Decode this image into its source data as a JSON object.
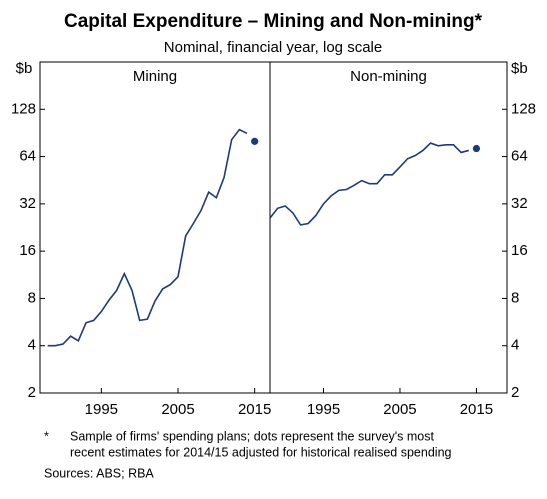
{
  "title": "Capital Expenditure – Mining and Non-mining*",
  "subtitle": "Nominal, financial year, log scale",
  "footnote": {
    "marker": "*",
    "lines": [
      "Sample of firms' spending plans;  dots represent the survey's most",
      "recent estimates for 2014/15 adjusted for historical realised spending"
    ]
  },
  "sources": "Sources:  ABS; RBA",
  "chart_data": [
    {
      "type": "line",
      "title": "Mining",
      "y_label": "$b",
      "log_scale": true,
      "color": "#1f3a7a",
      "x": [
        1988,
        1989,
        1990,
        1991,
        1992,
        1993,
        1994,
        1995,
        1996,
        1997,
        1998,
        1999,
        2000,
        2001,
        2002,
        2003,
        2004,
        2005,
        2006,
        2007,
        2008,
        2009,
        2010,
        2011,
        2012,
        2013,
        2014
      ],
      "values": [
        4,
        4,
        4.1,
        4.6,
        4.3,
        5.6,
        5.8,
        6.6,
        7.8,
        9,
        11.5,
        9,
        5.8,
        5.9,
        7.7,
        9.2,
        9.8,
        11,
        20,
        24,
        29,
        38,
        35,
        47,
        82,
        95,
        90
      ],
      "estimate": {
        "x": 2015,
        "value": 80
      },
      "xlim": [
        1987,
        2017
      ],
      "xticks": [
        1995,
        2005,
        2015
      ],
      "ylim": [
        2,
        256
      ],
      "yticks": [
        2,
        4,
        8,
        16,
        32,
        64,
        128
      ]
    },
    {
      "type": "line",
      "title": "Non-mining",
      "y_label": "$b",
      "log_scale": true,
      "color": "#1f3a7a",
      "x": [
        1988,
        1989,
        1990,
        1991,
        1992,
        1993,
        1994,
        1995,
        1996,
        1997,
        1998,
        1999,
        2000,
        2001,
        2002,
        2003,
        2004,
        2005,
        2006,
        2007,
        2008,
        2009,
        2010,
        2011,
        2012,
        2013,
        2014
      ],
      "values": [
        26,
        30,
        31,
        28,
        23.5,
        24,
        27,
        32,
        36,
        39,
        39.5,
        42,
        45,
        43,
        43,
        49,
        49,
        55,
        62,
        65,
        70,
        78,
        75,
        76,
        76,
        68,
        70
      ],
      "estimate": {
        "x": 2015,
        "value": 72
      },
      "xlim": [
        1988,
        2019
      ],
      "xticks": [
        1995,
        2005,
        2015
      ],
      "ylim": [
        2,
        256
      ],
      "yticks": [
        2,
        4,
        8,
        16,
        32,
        64,
        128
      ]
    }
  ]
}
